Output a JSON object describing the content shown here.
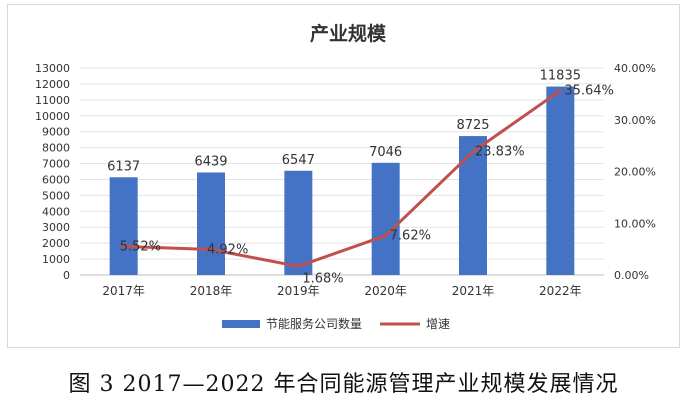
{
  "caption": "图 3 2017—2022 年合同能源管理产业规模发展情况",
  "chart_data": {
    "type": "bar",
    "title": "产业规模",
    "categories": [
      "2017年",
      "2018年",
      "2019年",
      "2020年",
      "2021年",
      "2022年"
    ],
    "series": [
      {
        "name": "节能服务公司数量",
        "type": "bar",
        "axis": "left",
        "values": [
          6137,
          6439,
          6547,
          7046,
          8725,
          11835
        ],
        "labels": [
          "6137",
          "6439",
          "6547",
          "7046",
          "8725",
          "11835"
        ],
        "color": "#4472c4"
      },
      {
        "name": "增速",
        "type": "line",
        "axis": "right",
        "values": [
          5.52,
          4.92,
          1.68,
          7.62,
          23.83,
          35.64
        ],
        "labels": [
          "5.52%",
          "4.92%",
          "1.68%",
          "7.62%",
          "23.83%",
          "35.64%"
        ],
        "color": "#c0504d"
      }
    ],
    "y_left": {
      "min": 0,
      "max": 13000,
      "ticks": [
        "0",
        "1000",
        "2000",
        "3000",
        "4000",
        "5000",
        "6000",
        "7000",
        "8000",
        "9000",
        "10000",
        "11000",
        "12000",
        "13000"
      ]
    },
    "y_right": {
      "min": 0,
      "max": 40,
      "ticks": [
        "0.00%",
        "10.00%",
        "20.00%",
        "30.00%",
        "40.00%"
      ]
    },
    "grid": true,
    "legend": "bottom"
  }
}
